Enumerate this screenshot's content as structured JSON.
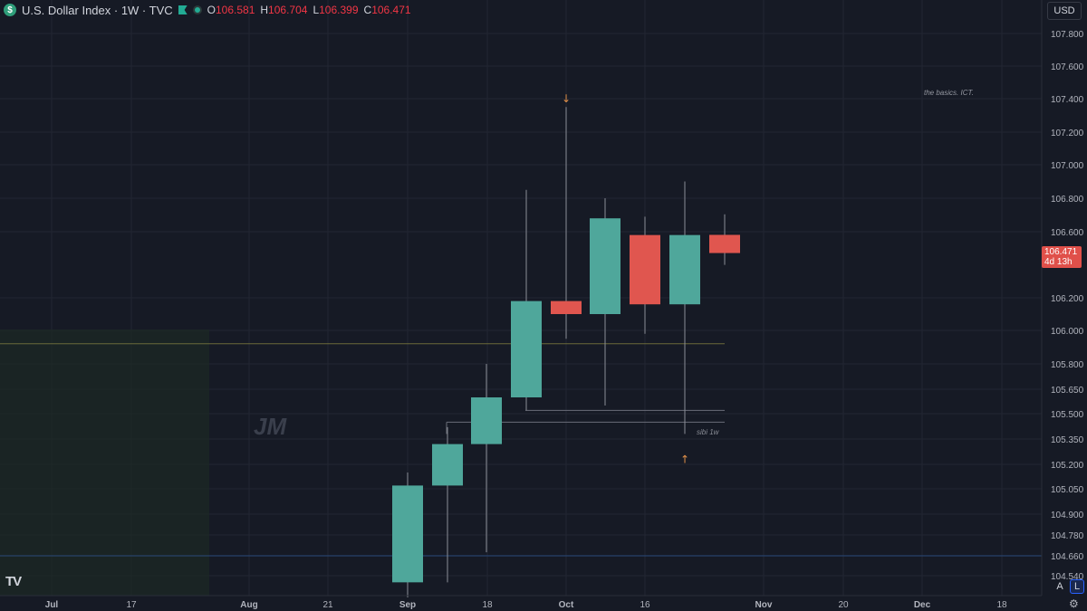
{
  "header": {
    "symbol_icon": "$",
    "title": "U.S. Dollar Index · 1W · TVC",
    "ohlc": [
      {
        "key": "O",
        "value": "106.581"
      },
      {
        "key": "H",
        "value": "106.704"
      },
      {
        "key": "L",
        "value": "106.399"
      },
      {
        "key": "C",
        "value": "106.471"
      }
    ]
  },
  "currency_label": "USD",
  "price_tag": {
    "price": "106.471",
    "countdown": "4d 13h"
  },
  "watermark": "JM",
  "annotations": {
    "top_right_note": "the basics. ICT.",
    "level_label": "sibi 1w"
  },
  "logo": "TV",
  "bottom_buttons": {
    "auto": "A",
    "log": "L"
  },
  "colors": {
    "bull": "#4fa79b",
    "bear": "#e0564f",
    "background": "#161a25",
    "grid": "#222632"
  },
  "chart_data": {
    "type": "candlestick",
    "title": "U.S. Dollar Index",
    "timeframe": "1W",
    "y_axis": {
      "ticks": [
        "107.800",
        "107.600",
        "107.400",
        "107.200",
        "107.000",
        "106.800",
        "106.600",
        "106.200",
        "106.000",
        "105.800",
        "105.650",
        "105.500",
        "105.350",
        "105.200",
        "105.050",
        "104.900",
        "104.780",
        "104.660",
        "104.540"
      ],
      "range": [
        104.5,
        107.9
      ],
      "scale": "non-linear (log-like)"
    },
    "x_axis": {
      "ticks": [
        "Jul",
        "17",
        "Aug",
        "21",
        "Sep",
        "18",
        "Oct",
        "16",
        "Nov",
        "20",
        "Dec",
        "18"
      ]
    },
    "candles": [
      {
        "date": "Sep 4",
        "open": 104.5,
        "high": 105.15,
        "low": 104.4,
        "close": 105.07
      },
      {
        "date": "Sep 11",
        "open": 105.07,
        "high": 105.42,
        "low": 104.5,
        "close": 105.32
      },
      {
        "date": "Sep 18",
        "open": 105.32,
        "high": 105.8,
        "low": 104.68,
        "close": 105.6
      },
      {
        "date": "Sep 25",
        "open": 105.6,
        "high": 106.85,
        "low": 105.52,
        "close": 106.18
      },
      {
        "date": "Oct 2",
        "open": 106.18,
        "high": 107.35,
        "low": 105.95,
        "close": 106.1
      },
      {
        "date": "Oct 9",
        "open": 106.1,
        "high": 106.8,
        "low": 105.55,
        "close": 106.68
      },
      {
        "date": "Oct 16",
        "open": 106.58,
        "high": 106.69,
        "low": 105.98,
        "close": 106.16
      },
      {
        "date": "Oct 23",
        "open": 106.16,
        "high": 106.9,
        "low": 105.38,
        "close": 106.58
      },
      {
        "date": "Oct 30",
        "open": 106.581,
        "high": 106.704,
        "low": 106.399,
        "close": 106.471
      }
    ],
    "levels": [
      {
        "name": "yellow-line",
        "price": 105.92,
        "color": "#6b6a3a"
      },
      {
        "name": "gray-line-upper",
        "price": 105.52,
        "color": "#6a6d78"
      },
      {
        "name": "gray-line-lower",
        "price": 105.45,
        "color": "#6a6d78"
      },
      {
        "name": "blue-line",
        "price": 104.66,
        "color": "#2a4a7a"
      }
    ],
    "markers": [
      {
        "type": "arrow-down",
        "date": "Oct 2",
        "price": 107.4,
        "color": "#e0904a"
      },
      {
        "type": "arrow-up",
        "date": "Oct 23",
        "price": 105.23,
        "color": "#e0904a"
      }
    ],
    "grid": true
  }
}
